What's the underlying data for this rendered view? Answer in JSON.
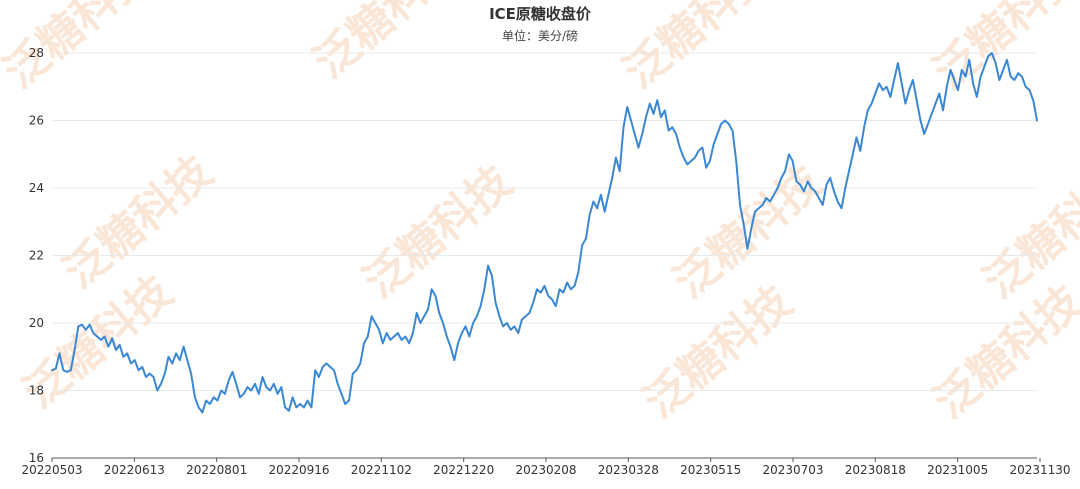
{
  "chart_data": {
    "type": "line",
    "title": "ICE原糖收盘价",
    "subtitle": "单位：美分/磅",
    "xlabel": "",
    "ylabel": "",
    "ylim": [
      16,
      28
    ],
    "yticks": [
      16,
      18,
      20,
      22,
      24,
      26,
      28
    ],
    "x_tick_labels": [
      "20220503",
      "20220613",
      "20220801",
      "20220916",
      "20221102",
      "20221220",
      "20230208",
      "20230328",
      "20230515",
      "20230703",
      "20230818",
      "20231005",
      "20231130"
    ],
    "grid": true,
    "legend": "none",
    "series": [
      {
        "values": [
          18.6,
          18.65,
          19.1,
          18.6,
          18.55,
          18.6,
          19.2,
          19.9,
          19.95,
          19.8,
          19.95,
          19.7,
          19.6,
          19.5,
          19.6,
          19.3,
          19.55,
          19.2,
          19.35,
          19.0,
          19.1,
          18.8,
          18.9,
          18.6,
          18.7,
          18.4,
          18.5,
          18.4,
          18.0,
          18.2,
          18.5,
          19.0,
          18.8,
          19.1,
          18.9,
          19.3,
          18.9,
          18.5,
          17.8,
          17.5,
          17.35,
          17.7,
          17.6,
          17.8,
          17.7,
          18.0,
          17.9,
          18.3,
          18.55,
          18.2,
          17.8,
          17.9,
          18.1,
          18.0,
          18.2,
          17.9,
          18.4,
          18.1,
          18.0,
          18.2,
          17.9,
          18.1,
          17.5,
          17.4,
          17.8,
          17.5,
          17.6,
          17.5,
          17.7,
          17.5,
          18.6,
          18.4,
          18.7,
          18.8,
          18.7,
          18.6,
          18.2,
          17.9,
          17.6,
          17.7,
          18.5,
          18.6,
          18.8,
          19.4,
          19.6,
          20.2,
          20.0,
          19.8,
          19.4,
          19.7,
          19.5,
          19.6,
          19.7,
          19.5,
          19.6,
          19.4,
          19.7,
          20.3,
          20.0,
          20.2,
          20.4,
          21.0,
          20.8,
          20.3,
          20.0,
          19.6,
          19.3,
          18.9,
          19.4,
          19.7,
          19.9,
          19.6,
          20.0,
          20.2,
          20.5,
          21.0,
          21.7,
          21.4,
          20.6,
          20.2,
          19.9,
          20.0,
          19.8,
          19.9,
          19.7,
          20.1,
          20.2,
          20.3,
          20.6,
          21.0,
          20.9,
          21.1,
          20.8,
          20.7,
          20.5,
          21.0,
          20.9,
          21.2,
          21.0,
          21.1,
          21.5,
          22.3,
          22.5,
          23.2,
          23.6,
          23.4,
          23.8,
          23.3,
          23.8,
          24.3,
          24.9,
          24.5,
          25.8,
          26.4,
          26.0,
          25.6,
          25.2,
          25.6,
          26.1,
          26.5,
          26.2,
          26.6,
          26.1,
          26.3,
          25.7,
          25.8,
          25.6,
          25.2,
          24.9,
          24.7,
          24.8,
          24.9,
          25.1,
          25.2,
          24.6,
          24.8,
          25.3,
          25.6,
          25.9,
          26.0,
          25.9,
          25.7,
          24.8,
          23.5,
          22.9,
          22.2,
          22.8,
          23.3,
          23.4,
          23.5,
          23.7,
          23.6,
          23.8,
          24.0,
          24.3,
          24.5,
          25.0,
          24.8,
          24.2,
          24.1,
          23.9,
          24.2,
          24.0,
          23.9,
          23.7,
          23.5,
          24.1,
          24.3,
          23.9,
          23.6,
          23.4,
          24.0,
          24.5,
          25.0,
          25.5,
          25.1,
          25.8,
          26.3,
          26.5,
          26.8,
          27.1,
          26.9,
          27.0,
          26.7,
          27.2,
          27.7,
          27.1,
          26.5,
          26.9,
          27.2,
          26.6,
          26.0,
          25.6,
          25.9,
          26.2,
          26.5,
          26.8,
          26.3,
          27.0,
          27.5,
          27.2,
          26.9,
          27.5,
          27.3,
          27.8,
          27.1,
          26.7,
          27.3,
          27.6,
          27.9,
          28.0,
          27.7,
          27.2,
          27.5,
          27.8,
          27.3,
          27.2,
          27.4,
          27.3,
          27.0,
          26.9,
          26.6,
          26.0
        ]
      }
    ],
    "watermark": "泛糖科技",
    "colors": {
      "line": "#3a87d4",
      "grid": "#e9e9e9",
      "axis": "#555555",
      "watermark": "#f6c9a6"
    }
  }
}
